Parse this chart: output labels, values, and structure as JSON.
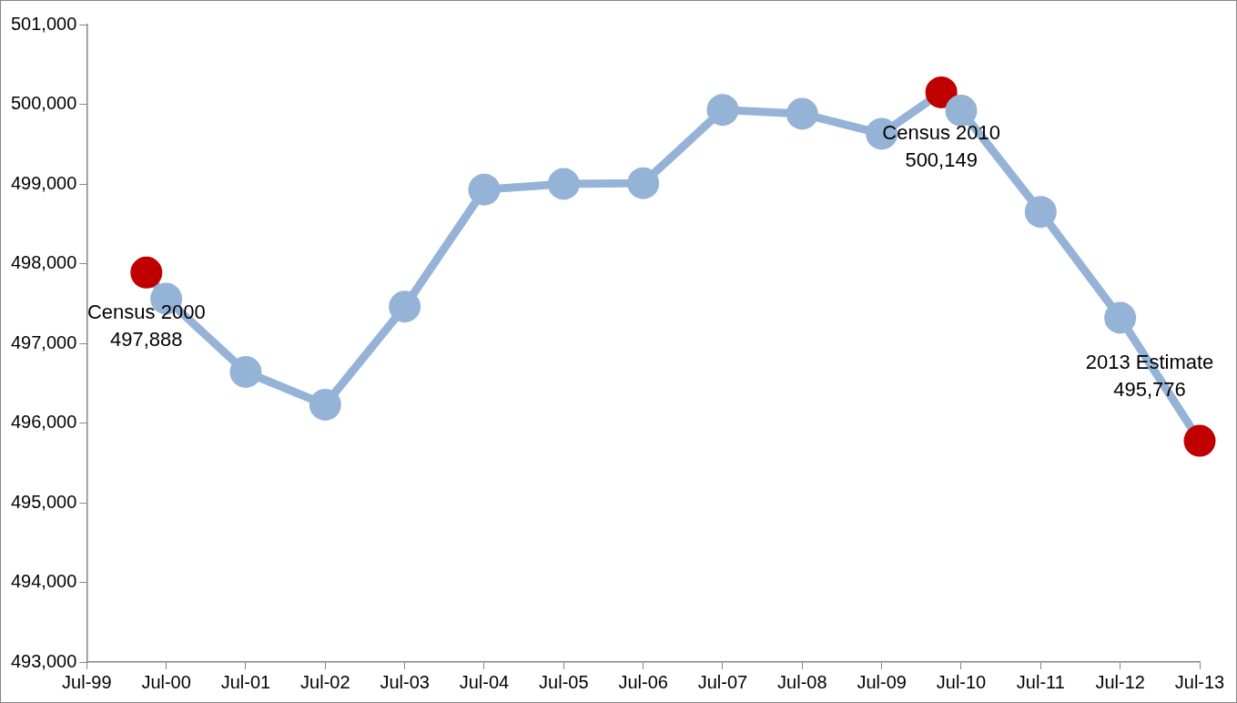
{
  "chart_data": {
    "type": "line",
    "x": [
      "2000-04-01",
      "2000-07",
      "2001-07",
      "2002-07",
      "2003-07",
      "2004-07",
      "2005-07",
      "2006-07",
      "2007-07",
      "2008-07",
      "2009-07",
      "2010-04-01",
      "2010-07",
      "2011-07",
      "2012-07",
      "2013-07"
    ],
    "series": [
      {
        "color": "#95b3d7",
        "colors": [
          "#c00000",
          "#95b3d7",
          "#95b3d7",
          "#95b3d7",
          "#95b3d7",
          "#95b3d7",
          "#95b3d7",
          "#95b3d7",
          "#95b3d7",
          "#95b3d7",
          "#95b3d7",
          "#c00000",
          "#95b3d7",
          "#95b3d7",
          "#95b3d7",
          "#c00000"
        ],
        "values": [
          497888,
          497560,
          496640,
          496230,
          497460,
          498930,
          499000,
          499010,
          499930,
          499880,
          499630,
          500149,
          499920,
          498650,
          497320,
          495776
        ]
      }
    ],
    "marker": "circle",
    "line_style": "solid",
    "grid": false,
    "legend": false,
    "xlim": [
      "1999-07",
      "2013-07"
    ],
    "xticks": [
      {
        "value": "1999-07",
        "label": "Jul-99"
      },
      {
        "value": "2000-07",
        "label": "Jul-00"
      },
      {
        "value": "2001-07",
        "label": "Jul-01"
      },
      {
        "value": "2002-07",
        "label": "Jul-02"
      },
      {
        "value": "2003-07",
        "label": "Jul-03"
      },
      {
        "value": "2004-07",
        "label": "Jul-04"
      },
      {
        "value": "2005-07",
        "label": "Jul-05"
      },
      {
        "value": "2006-07",
        "label": "Jul-06"
      },
      {
        "value": "2007-07",
        "label": "Jul-07"
      },
      {
        "value": "2008-07",
        "label": "Jul-08"
      },
      {
        "value": "2009-07",
        "label": "Jul-09"
      },
      {
        "value": "2010-07",
        "label": "Jul-10"
      },
      {
        "value": "2011-07",
        "label": "Jul-11"
      },
      {
        "value": "2012-07",
        "label": "Jul-12"
      },
      {
        "value": "2013-07",
        "label": "Jul-13"
      }
    ],
    "ylim": [
      493000,
      501000
    ],
    "yticks": [
      {
        "value": 493000,
        "label": "493,000"
      },
      {
        "value": 494000,
        "label": "494,000"
      },
      {
        "value": 495000,
        "label": "495,000"
      },
      {
        "value": 496000,
        "label": "496,000"
      },
      {
        "value": 497000,
        "label": "497,000"
      },
      {
        "value": 498000,
        "label": "498,000"
      },
      {
        "value": 499000,
        "label": "499,000"
      },
      {
        "value": 500000,
        "label": "500,000"
      },
      {
        "value": 501000,
        "label": "501,000"
      }
    ],
    "annotations": [
      {
        "text": "Census 2000\n497,888",
        "x": "2000-04-01",
        "y": 497888
      },
      {
        "text": "Census 2010\n500,149",
        "x": "2010-04-01",
        "y": 500149
      },
      {
        "text": "2013 Estimate\n495,776",
        "x": "2013-07",
        "y": 495776
      }
    ]
  }
}
